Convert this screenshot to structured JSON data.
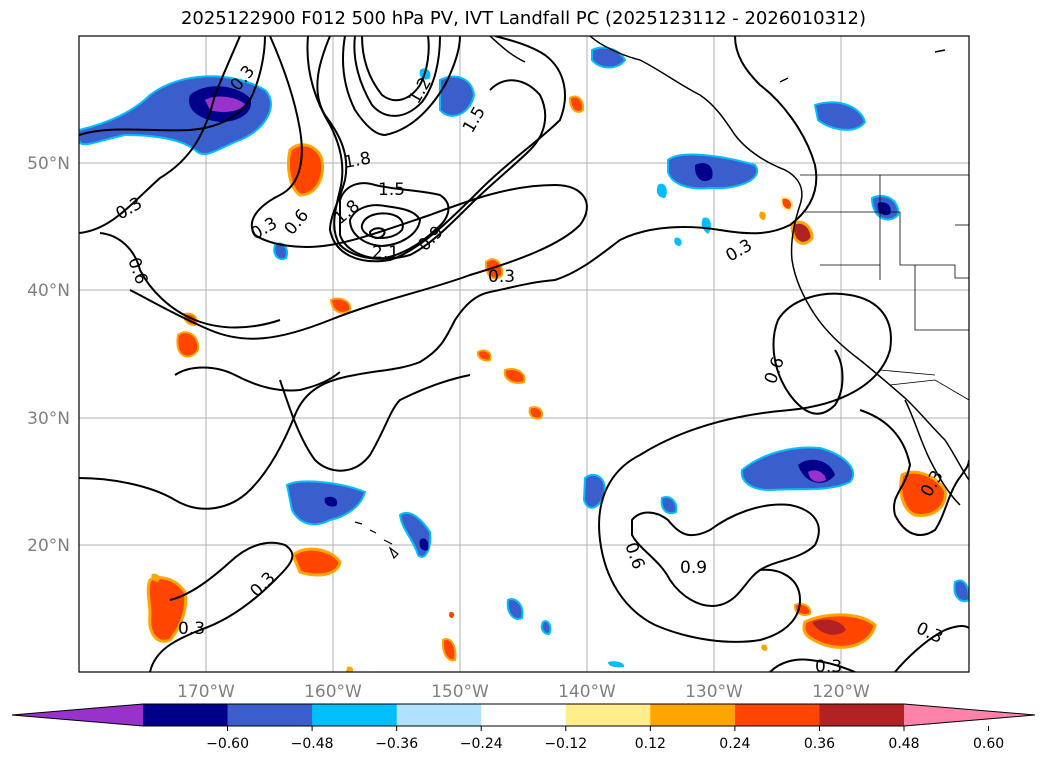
{
  "title": "2025122900 F012 500 hPa PV, IVT Landfall PC (2025123112 - 2026010312)",
  "map": {
    "lat_labels": [
      "50°N",
      "40°N",
      "30°N",
      "20°N"
    ],
    "lon_labels": [
      "170°W",
      "160°W",
      "150°W",
      "140°W",
      "130°W",
      "120°W"
    ],
    "grid": true
  },
  "contours": {
    "color": "#000000",
    "labels": [
      "0.3",
      "0.3",
      "0.6",
      "0.3",
      "0.6",
      "1.8",
      "1.5",
      "1.8",
      "2.1",
      "0.9",
      "0.3",
      "1.5",
      "0.3",
      "0.6",
      "0.6",
      "0.9",
      "0.3",
      "0.3",
      "0.3",
      "0.3",
      "1.2",
      "0.3"
    ]
  },
  "colorbar": {
    "ticks": [
      "−0.60",
      "−0.48",
      "−0.36",
      "−0.24",
      "−0.12",
      "0.12",
      "0.24",
      "0.36",
      "0.48",
      "0.60"
    ],
    "colors": [
      "#9932cc",
      "#00008b",
      "#3a5fcd",
      "#00bfff",
      "#b0e2ff",
      "#ffffff",
      "#ffec8b",
      "#ffa500",
      "#ff4500",
      "#b22222",
      "#ff82ab"
    ]
  }
}
